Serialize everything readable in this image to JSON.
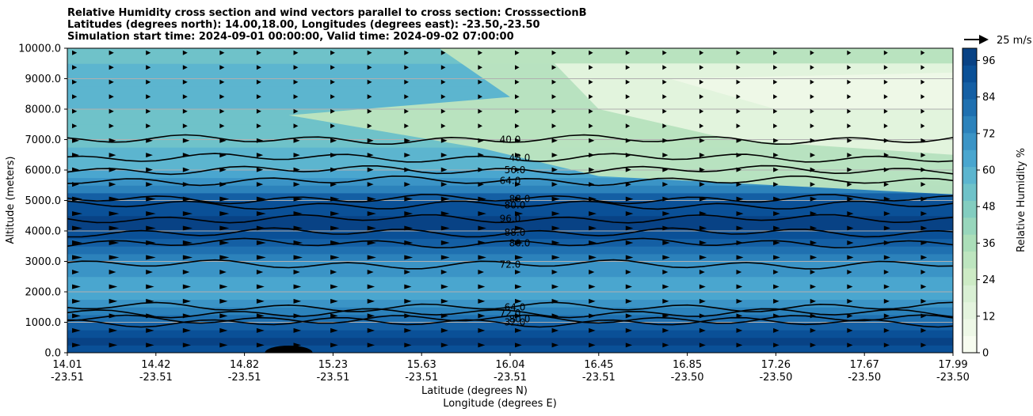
{
  "title_lines": [
    "Relative Humidity cross section and wind vectors parallel to cross section: CrosssectionB",
    "Latitudes (degrees north): 14.00,18.00, Longitudes (degrees east): -23.50,-23.50",
    "Simulation start time: 2024-09-01 00:00:00, Valid time: 2024-09-02 07:00:00"
  ],
  "chart_data": {
    "type": "heatmap",
    "subtype": "filled contour cross-section with line contours and wind quiver",
    "ylabel": "Altitude (meters)",
    "xlabel_lines": [
      "Latitude (degrees N)",
      "Longitude (degrees E)"
    ],
    "ylim": [
      0,
      10000
    ],
    "y_ticks": [
      "0.0",
      "1000.0",
      "2000.0",
      "3000.0",
      "4000.0",
      "5000.0",
      "6000.0",
      "7000.0",
      "8000.0",
      "9000.0",
      "10000.0"
    ],
    "x_ticks": [
      {
        "lat": "14.01",
        "lon": "-23.51"
      },
      {
        "lat": "14.42",
        "lon": "-23.51"
      },
      {
        "lat": "14.82",
        "lon": "-23.51"
      },
      {
        "lat": "15.23",
        "lon": "-23.51"
      },
      {
        "lat": "15.63",
        "lon": "-23.51"
      },
      {
        "lat": "16.04",
        "lon": "-23.51"
      },
      {
        "lat": "16.45",
        "lon": "-23.51"
      },
      {
        "lat": "16.85",
        "lon": "-23.50"
      },
      {
        "lat": "17.26",
        "lon": "-23.50"
      },
      {
        "lat": "17.67",
        "lon": "-23.50"
      },
      {
        "lat": "17.99",
        "lon": "-23.50"
      }
    ],
    "horizontal_gridlines": true,
    "colorbar": {
      "label": "Relative Humidity %",
      "ticks": [
        "0",
        "12",
        "24",
        "36",
        "48",
        "60",
        "72",
        "84",
        "96"
      ],
      "range": [
        0,
        100
      ],
      "colors": [
        "#f7fcf0",
        "#eef8e7",
        "#e4f4de",
        "#d9f0d4",
        "#cdebc5",
        "#bde5bf",
        "#abdeb9",
        "#98d6bc",
        "#83cdc0",
        "#6fc2c9",
        "#5cb5cf",
        "#4aa6cf",
        "#3b94c6",
        "#2c82bb",
        "#1f70b0",
        "#145fa4",
        "#0a5097",
        "#084285"
      ]
    },
    "quiver_key": {
      "label": "25 m/s",
      "speed": 25
    },
    "rh_profile": [
      {
        "z": 0,
        "rh": 92
      },
      {
        "z": 500,
        "rh": 96
      },
      {
        "z": 1000,
        "rh": 86
      },
      {
        "z": 1500,
        "rh": 70
      },
      {
        "z": 2000,
        "rh": 64
      },
      {
        "z": 2500,
        "rh": 66
      },
      {
        "z": 3000,
        "rh": 74
      },
      {
        "z": 3500,
        "rh": 84
      },
      {
        "z": 4000,
        "rh": 94
      },
      {
        "z": 4500,
        "rh": 96
      },
      {
        "z": 5000,
        "rh": 88
      },
      {
        "z": 5500,
        "rh": 72
      },
      {
        "z": 6000,
        "rh": 62
      },
      {
        "z": 7000,
        "rh": 52
      },
      {
        "z": 8000,
        "rh": 56
      },
      {
        "z": 9000,
        "rh": 58
      },
      {
        "z": 10000,
        "rh": 54
      }
    ],
    "contour_lines": [
      {
        "level": "96.0",
        "z": 4400
      },
      {
        "level": "88.0",
        "z": 3950
      },
      {
        "level": "80.0",
        "z": 3600
      },
      {
        "level": "72.0",
        "z": 2900
      },
      {
        "level": "80.0",
        "z": 4850
      },
      {
        "level": "88.0",
        "z": 5050
      },
      {
        "level": "64.0",
        "z": 5650
      },
      {
        "level": "56.0",
        "z": 6000
      },
      {
        "level": "48.0",
        "z": 6400
      },
      {
        "level": "40.0",
        "z": 7000
      },
      {
        "level": "64.0",
        "z": 1500
      },
      {
        "level": "80.0",
        "z": 1100
      },
      {
        "level": "72.0",
        "z": 1300
      },
      {
        "level": "32.0",
        "z": 1000
      }
    ]
  }
}
